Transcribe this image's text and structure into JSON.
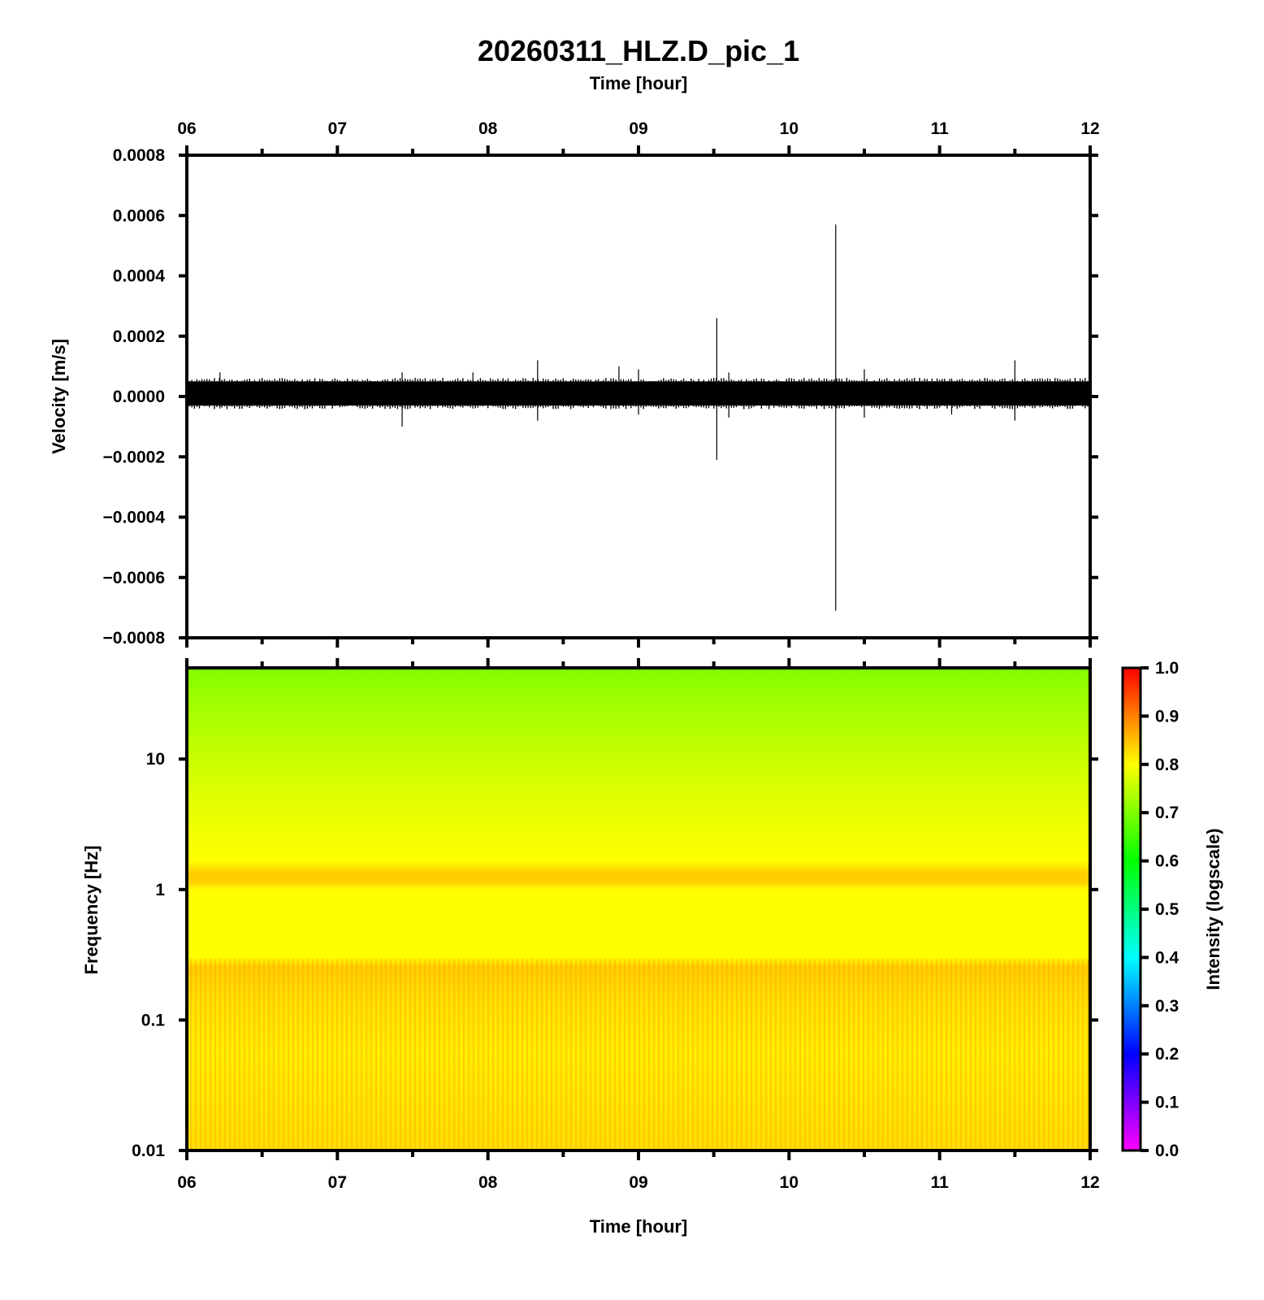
{
  "title": "20260311_HLZ.D_pic_1",
  "chart_data": [
    {
      "type": "line",
      "name": "velocity-waveform",
      "title": "20260311_HLZ.D_pic_1",
      "xlabel": "Time [hour]",
      "ylabel": "Velocity [m/s]",
      "x_tick_labels": [
        "06",
        "07",
        "08",
        "09",
        "10",
        "11",
        "12"
      ],
      "xlim": [
        6,
        12
      ],
      "ylim": [
        -0.0008,
        0.0008
      ],
      "y_tick_labels": [
        "0.0008",
        "0.0006",
        "0.0004",
        "0.0002",
        "0.0000",
        "−0.0002",
        "−0.0004",
        "−0.0006",
        "−0.0008"
      ],
      "y_ticks": [
        0.0008,
        0.0006,
        0.0004,
        0.0002,
        0.0,
        -0.0002,
        -0.0004,
        -0.0006,
        -0.0008
      ],
      "noise_band": [
        -3e-05,
        5e-05
      ],
      "spikes": [
        {
          "t": 6.22,
          "max": 8e-05,
          "min": -4e-05
        },
        {
          "t": 7.43,
          "max": 8e-05,
          "min": -0.0001
        },
        {
          "t": 7.9,
          "max": 8e-05,
          "min": -4e-05
        },
        {
          "t": 8.33,
          "max": 0.00012,
          "min": -8e-05
        },
        {
          "t": 8.87,
          "max": 0.0001,
          "min": -4e-05
        },
        {
          "t": 9.0,
          "max": 9e-05,
          "min": -6e-05
        },
        {
          "t": 9.52,
          "max": 0.00026,
          "min": -0.00021
        },
        {
          "t": 9.6,
          "max": 8e-05,
          "min": -7e-05
        },
        {
          "t": 10.31,
          "max": 0.00057,
          "min": -0.00071
        },
        {
          "t": 10.5,
          "max": 9e-05,
          "min": -7e-05
        },
        {
          "t": 11.08,
          "max": 6e-05,
          "min": -6e-05
        },
        {
          "t": 11.5,
          "max": 0.00012,
          "min": -8e-05
        }
      ],
      "grid": false
    },
    {
      "type": "heatmap",
      "name": "spectrogram",
      "xlabel": "Time [hour]",
      "ylabel": "Frequency [Hz]",
      "x_tick_labels": [
        "06",
        "07",
        "08",
        "09",
        "10",
        "11",
        "12"
      ],
      "xlim": [
        6,
        12
      ],
      "y_scale": "log",
      "ylim": [
        0.01,
        50
      ],
      "y_ticks": [
        10,
        1,
        0.1,
        0.01
      ],
      "y_tick_labels": [
        "10",
        "1",
        "0.1",
        "0.01"
      ],
      "intensity_profile": [
        {
          "freq": 50,
          "intensity": 0.7
        },
        {
          "freq": 30,
          "intensity": 0.73
        },
        {
          "freq": 10,
          "intensity": 0.77
        },
        {
          "freq": 3,
          "intensity": 0.8
        },
        {
          "freq": 1.5,
          "intensity": 0.83
        },
        {
          "freq": 1.2,
          "intensity": 0.86
        },
        {
          "freq": 1.0,
          "intensity": 0.82
        },
        {
          "freq": 0.4,
          "intensity": 0.81
        },
        {
          "freq": 0.25,
          "intensity": 0.86
        },
        {
          "freq": 0.15,
          "intensity": 0.84
        },
        {
          "freq": 0.05,
          "intensity": 0.82
        },
        {
          "freq": 0.01,
          "intensity": 0.85
        }
      ],
      "colorbar": {
        "label": "Intensity (logscale)",
        "range": [
          0.0,
          1.0
        ],
        "tick_labels": [
          "1.0",
          "0.9",
          "0.8",
          "0.7",
          "0.6",
          "0.5",
          "0.4",
          "0.3",
          "0.2",
          "0.1",
          "0.0"
        ],
        "colors": [
          "#ff00ff",
          "#8000ff",
          "#0000ff",
          "#0080ff",
          "#00ffff",
          "#00ff80",
          "#00ff00",
          "#80ff00",
          "#ffff00",
          "#ff8000",
          "#ff0000"
        ]
      }
    }
  ]
}
